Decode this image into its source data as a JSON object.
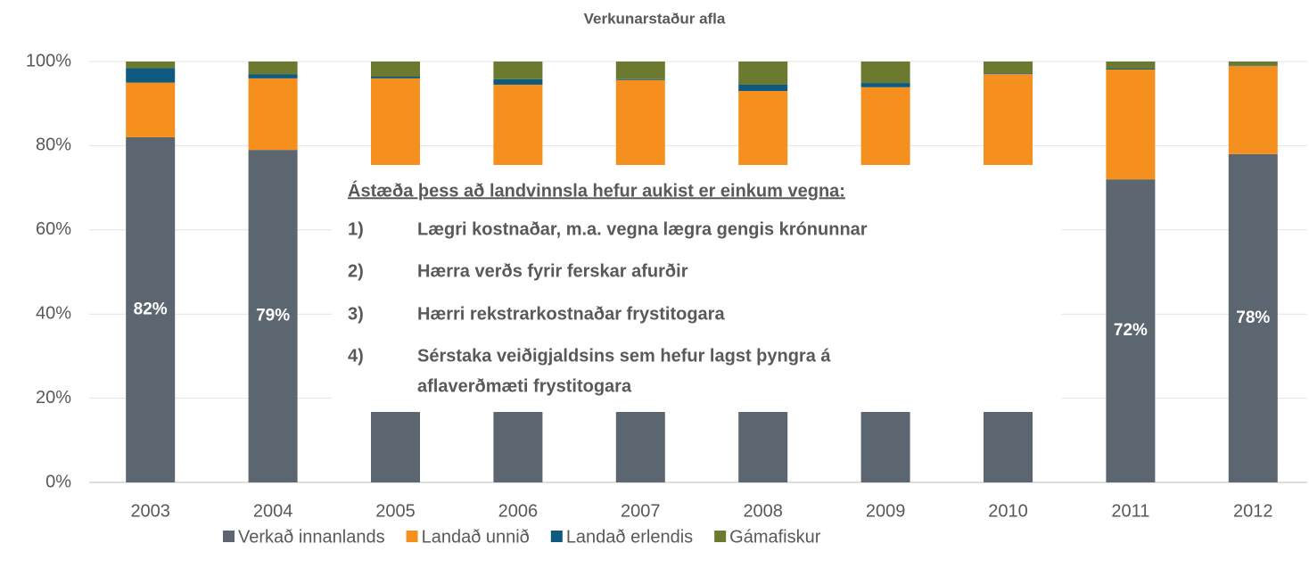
{
  "chart_data": {
    "type": "stacked_bar",
    "title": "Verkunarstaður afla",
    "categories": [
      "2003",
      "2004",
      "2005",
      "2006",
      "2007",
      "2008",
      "2009",
      "2010",
      "2011",
      "2012"
    ],
    "series": [
      {
        "name": "Verkað innanlands",
        "color": "#5b6670",
        "values": [
          82,
          79,
          70,
          68,
          66,
          62,
          60,
          65,
          72,
          78
        ],
        "value_labels": [
          "82%",
          "79%",
          null,
          null,
          null,
          null,
          null,
          null,
          "72%",
          "78%"
        ]
      },
      {
        "name": "Landað unnið",
        "color": "#f5901e",
        "values": [
          13,
          17,
          26,
          26.5,
          29.6,
          31,
          33.9,
          32,
          26.1,
          20.9
        ]
      },
      {
        "name": "Landað erlendis",
        "color": "#0e5a80",
        "values": [
          3.4,
          1,
          0.4,
          1.3,
          0.2,
          1.5,
          1,
          0.2,
          0.2,
          0.1
        ]
      },
      {
        "name": "Gámafiskur",
        "color": "#6b7a2f",
        "values": [
          1.6,
          3,
          3.6,
          4.2,
          4.2,
          5.5,
          5.1,
          2.8,
          1.7,
          1
        ]
      }
    ],
    "ylim": [
      0,
      100
    ],
    "yticks": [
      {
        "value": 0,
        "label": "0%"
      },
      {
        "value": 20,
        "label": "20%"
      },
      {
        "value": 40,
        "label": "40%"
      },
      {
        "value": 60,
        "label": "60%"
      },
      {
        "value": 80,
        "label": "80%"
      },
      {
        "value": 100,
        "label": "100%"
      }
    ],
    "grid": true,
    "legend": "bottom",
    "annotation": {
      "heading": "Ástæða þess að landvinnsla hefur aukist er einkum vegna:",
      "items": [
        {
          "number": "1)",
          "lines": [
            "Lægri kostnaðar, m.a. vegna lægra gengis krónunnar"
          ]
        },
        {
          "number": "2)",
          "lines": [
            "Hærra verðs fyrir ferskar afurðir"
          ]
        },
        {
          "number": "3)",
          "lines": [
            "Hærri rekstrarkostnaðar frystitogara"
          ]
        },
        {
          "number": "4)",
          "lines": [
            "Sérstaka veiðigjaldsins sem hefur lagst þyngra á",
            "aflaverðmæti frystitogara"
          ]
        }
      ]
    }
  }
}
